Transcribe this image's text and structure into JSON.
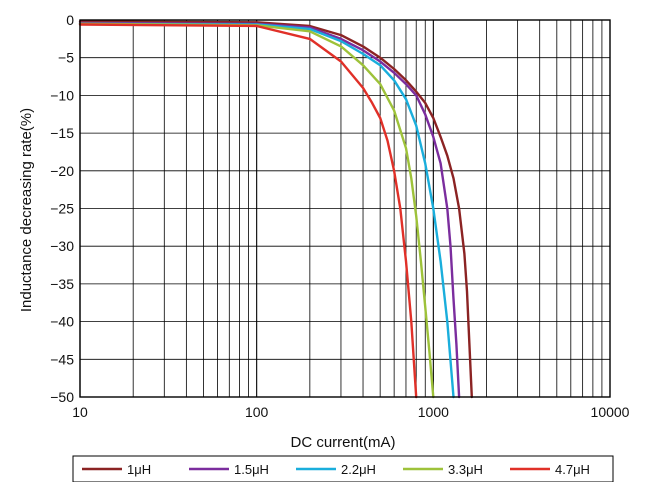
{
  "chart_data": {
    "type": "line",
    "title": "",
    "xlabel": "DC current(mA)",
    "ylabel": "Inductance decreasing rate(%)",
    "xscale": "log",
    "xlim": [
      10,
      10000
    ],
    "ylim": [
      -50,
      0
    ],
    "grid": true,
    "legend_position": "bottom",
    "x_ticks": [
      10,
      100,
      1000,
      10000
    ],
    "x_tick_labels": [
      "10",
      "100",
      "1000",
      "10000"
    ],
    "y_ticks": [
      0,
      -5,
      -10,
      -15,
      -20,
      -25,
      -30,
      -35,
      -40,
      -45,
      -50
    ],
    "y_tick_labels": [
      "0",
      "−5",
      "−10",
      "−15",
      "−20",
      "−25",
      "−30",
      "−35",
      "−40",
      "−45",
      "−50"
    ],
    "series": [
      {
        "name": "1μH",
        "color": "#8b2323",
        "points": [
          [
            10,
            -0.2
          ],
          [
            100,
            -0.3
          ],
          [
            200,
            -0.8
          ],
          [
            300,
            -2
          ],
          [
            400,
            -3.5
          ],
          [
            500,
            -5
          ],
          [
            600,
            -6.5
          ],
          [
            700,
            -8
          ],
          [
            800,
            -9.5
          ],
          [
            900,
            -11
          ],
          [
            1000,
            -13
          ],
          [
            1100,
            -15.5
          ],
          [
            1200,
            -18
          ],
          [
            1300,
            -21
          ],
          [
            1400,
            -25
          ],
          [
            1500,
            -31
          ],
          [
            1550,
            -36
          ],
          [
            1600,
            -43
          ],
          [
            1650,
            -50
          ]
        ]
      },
      {
        "name": "1.5μH",
        "color": "#7b2d9e",
        "points": [
          [
            10,
            -0.4
          ],
          [
            100,
            -0.5
          ],
          [
            200,
            -1
          ],
          [
            300,
            -2.5
          ],
          [
            400,
            -4
          ],
          [
            500,
            -5.5
          ],
          [
            600,
            -7
          ],
          [
            700,
            -8.5
          ],
          [
            800,
            -10
          ],
          [
            900,
            -12.5
          ],
          [
            1000,
            -15.5
          ],
          [
            1100,
            -19
          ],
          [
            1200,
            -25
          ],
          [
            1250,
            -30
          ],
          [
            1300,
            -37
          ],
          [
            1350,
            -43
          ],
          [
            1400,
            -50
          ]
        ]
      },
      {
        "name": "2.2μH",
        "color": "#1aaedc",
        "points": [
          [
            10,
            -0.5
          ],
          [
            100,
            -0.6
          ],
          [
            200,
            -1.2
          ],
          [
            300,
            -2.8
          ],
          [
            400,
            -4.5
          ],
          [
            500,
            -6
          ],
          [
            600,
            -8
          ],
          [
            700,
            -10.5
          ],
          [
            800,
            -14
          ],
          [
            900,
            -19
          ],
          [
            1000,
            -25
          ],
          [
            1100,
            -32
          ],
          [
            1200,
            -40
          ],
          [
            1300,
            -50
          ]
        ]
      },
      {
        "name": "3.3μH",
        "color": "#9ec23a",
        "points": [
          [
            10,
            -0.5
          ],
          [
            100,
            -0.7
          ],
          [
            200,
            -1.5
          ],
          [
            300,
            -3.5
          ],
          [
            400,
            -6
          ],
          [
            500,
            -8.5
          ],
          [
            600,
            -12
          ],
          [
            700,
            -17
          ],
          [
            750,
            -21
          ],
          [
            800,
            -26
          ],
          [
            850,
            -32
          ],
          [
            900,
            -38
          ],
          [
            950,
            -44
          ],
          [
            1000,
            -50
          ]
        ]
      },
      {
        "name": "4.7μH",
        "color": "#e03028",
        "points": [
          [
            10,
            -0.6
          ],
          [
            100,
            -0.8
          ],
          [
            200,
            -2.5
          ],
          [
            300,
            -5.5
          ],
          [
            400,
            -9
          ],
          [
            450,
            -11
          ],
          [
            500,
            -13
          ],
          [
            550,
            -16
          ],
          [
            600,
            -20
          ],
          [
            650,
            -25
          ],
          [
            700,
            -32
          ],
          [
            750,
            -40
          ],
          [
            800,
            -50
          ]
        ]
      }
    ]
  }
}
